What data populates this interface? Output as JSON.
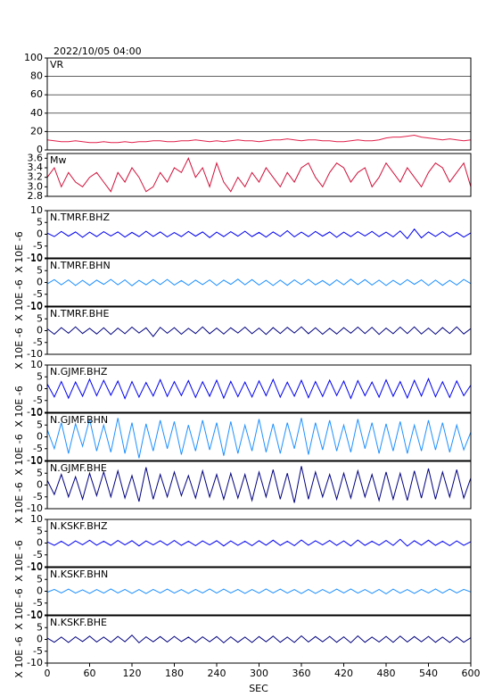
{
  "chart_data": {
    "type": "line",
    "title": "2022/10/05 04:00",
    "x_label": "SEC",
    "xlim": [
      0,
      600
    ],
    "xticks": [
      0,
      60,
      120,
      180,
      240,
      300,
      360,
      420,
      480,
      540,
      600
    ],
    "x": [
      0,
      10,
      20,
      30,
      40,
      50,
      60,
      70,
      80,
      90,
      100,
      110,
      120,
      130,
      140,
      150,
      160,
      170,
      180,
      190,
      200,
      210,
      220,
      230,
      240,
      250,
      260,
      270,
      280,
      290,
      300,
      310,
      320,
      330,
      340,
      350,
      360,
      370,
      380,
      390,
      400,
      410,
      420,
      430,
      440,
      450,
      460,
      470,
      480,
      490,
      500,
      510,
      520,
      530,
      540,
      550,
      560,
      570,
      580,
      590,
      600
    ],
    "panels": [
      {
        "label": "VR",
        "color": "#e0204a",
        "ylim": [
          0,
          100
        ],
        "yticks": [
          0,
          20,
          40,
          60,
          80,
          100
        ],
        "grid": true,
        "values": [
          11,
          10,
          9,
          9,
          10,
          9,
          8,
          8,
          9,
          8,
          8,
          9,
          8,
          9,
          9,
          10,
          10,
          9,
          9,
          10,
          10,
          11,
          10,
          9,
          10,
          9,
          10,
          11,
          10,
          10,
          9,
          10,
          11,
          11,
          12,
          11,
          10,
          11,
          11,
          10,
          10,
          9,
          9,
          10,
          11,
          10,
          10,
          11,
          13,
          14,
          14,
          15,
          16,
          14,
          13,
          12,
          11,
          12,
          11,
          10,
          11
        ]
      },
      {
        "label": "Mw",
        "color": "#d0103a",
        "ylim": [
          2.8,
          3.7
        ],
        "yticks": [
          2.8,
          {
            "value": 3,
            "label": "3.0"
          },
          3.2,
          3.4,
          3.6
        ],
        "grid": false,
        "values": [
          3.2,
          3.4,
          3.0,
          3.3,
          3.1,
          3.0,
          3.2,
          3.3,
          3.1,
          2.9,
          3.3,
          3.1,
          3.4,
          3.2,
          2.9,
          3.0,
          3.3,
          3.1,
          3.4,
          3.3,
          3.6,
          3.2,
          3.4,
          3.0,
          3.5,
          3.1,
          2.9,
          3.2,
          3.0,
          3.3,
          3.1,
          3.4,
          3.2,
          3.0,
          3.3,
          3.1,
          3.4,
          3.5,
          3.2,
          3.0,
          3.3,
          3.5,
          3.4,
          3.1,
          3.3,
          3.4,
          3.0,
          3.2,
          3.5,
          3.3,
          3.1,
          3.4,
          3.2,
          3.0,
          3.3,
          3.5,
          3.4,
          3.1,
          3.3,
          3.5,
          3.0
        ]
      },
      {
        "label": "N.TMRF.BHZ",
        "unit_label": "X 10E -6",
        "color": "#0000ee",
        "ylim": [
          -10,
          10
        ],
        "yticks": [
          -10,
          -5,
          0,
          5,
          10
        ],
        "grid": false,
        "values": [
          0.5,
          -1,
          1.2,
          -0.8,
          1,
          -1.3,
          0.9,
          -1,
          1.1,
          -0.7,
          1,
          -1.2,
          0.8,
          -1,
          1.3,
          -0.9,
          1,
          -1.1,
          0.7,
          -1,
          1.2,
          -0.8,
          1,
          -1.4,
          0.9,
          -1,
          1.1,
          -0.8,
          1.3,
          -1,
          0.8,
          -1.2,
          1,
          -0.9,
          1.5,
          -1.1,
          0.9,
          -1,
          1.2,
          -0.8,
          1,
          -1.3,
          0.9,
          -1,
          1.1,
          -0.7,
          1.2,
          -1,
          0.9,
          -1.1,
          1.4,
          -1.8,
          2.2,
          -1.5,
          1,
          -0.9,
          1.1,
          -1,
          0.8,
          -1.2,
          0.6
        ]
      },
      {
        "label": "N.TMRF.BHN",
        "unit_label": "X 10E -6",
        "color": "#1e90ff",
        "ylim": [
          -10,
          10
        ],
        "yticks": [
          -10,
          -5,
          0,
          5,
          10
        ],
        "grid": false,
        "values": [
          -0.6,
          1.2,
          -1,
          1.1,
          -1.3,
          0.9,
          -1.2,
          1,
          -0.8,
          1.3,
          -1,
          1.1,
          -1.4,
          0.9,
          -1,
          1.2,
          -0.9,
          1.3,
          -1.1,
          0.8,
          -1.2,
          1,
          -0.9,
          1.1,
          -1.3,
          1,
          -0.8,
          1.4,
          -1,
          1.2,
          -1.1,
          0.9,
          -1.3,
          1,
          -1.2,
          1.1,
          -0.9,
          1.3,
          -1,
          0.8,
          -1.2,
          1.1,
          -1,
          1.4,
          -0.9,
          1.2,
          -1.1,
          1,
          -1.3,
          0.9,
          -1,
          1.2,
          -0.8,
          1.1,
          -1.3,
          1,
          -1.2,
          0.9,
          -1.1,
          1.3,
          -0.5
        ]
      },
      {
        "label": "N.TMRF.BHE",
        "unit_label": "X 10E -6",
        "color": "#00007f",
        "ylim": [
          -10,
          10
        ],
        "yticks": [
          -10,
          -5,
          0,
          5,
          10
        ],
        "grid": false,
        "values": [
          0.8,
          -1.5,
          1.3,
          -1.1,
          1.6,
          -1.2,
          1,
          -1.4,
          1.2,
          -1.6,
          1.1,
          -1.3,
          1.5,
          -1,
          1.2,
          -2.5,
          1.4,
          -1.1,
          1.3,
          -1.5,
          1,
          -1.2,
          1.6,
          -1.3,
          1.1,
          -1.4,
          1.2,
          -1,
          1.5,
          -1.3,
          1.1,
          -1.6,
          1.3,
          -1.2,
          1.4,
          -1,
          1.6,
          -1.3,
          1.2,
          -1.5,
          1,
          -1.4,
          1.3,
          -1.1,
          1.5,
          -1.2,
          1.4,
          -1.6,
          1.1,
          -1.3,
          1.5,
          -1.2,
          1.6,
          -1.4,
          1.1,
          -1.5,
          1.3,
          -1.2,
          1.6,
          -1.4,
          0.9
        ]
      },
      {
        "label": "N.GJMF.BHZ",
        "unit_label": "X 10E -6",
        "color": "#0000ee",
        "ylim": [
          -10,
          10
        ],
        "yticks": [
          -10,
          -5,
          0,
          5,
          10
        ],
        "grid": false,
        "values": [
          2,
          -3.5,
          3,
          -4,
          2.8,
          -3.2,
          4,
          -3,
          3.5,
          -2.8,
          3.2,
          -4.2,
          3,
          -3.6,
          2.6,
          -3.1,
          3.8,
          -3.3,
          3,
          -2.9,
          3.4,
          -3.7,
          2.9,
          -3.2,
          3.6,
          -4,
          3.1,
          -3.4,
          2.8,
          -3.5,
          3.3,
          -3,
          3.9,
          -3.6,
          2.7,
          -3.2,
          3.5,
          -3.8,
          3,
          -3.3,
          3.6,
          -2.9,
          3.2,
          -4.1,
          3.4,
          -3,
          2.8,
          -3.6,
          3.7,
          -3.2,
          3,
          -3.9,
          3.5,
          -3.1,
          4.2,
          -3.4,
          2.9,
          -3.7,
          3.3,
          -3,
          1.5
        ]
      },
      {
        "label": "N.GJMF.BHN",
        "unit_label": "X 10E -6",
        "color": "#1e90ff",
        "ylim": [
          -10,
          10
        ],
        "yticks": [
          -10,
          -5,
          0,
          5,
          10
        ],
        "grid": false,
        "values": [
          3,
          -5,
          6,
          -7,
          5.5,
          -4,
          7.5,
          -6,
          5,
          -6.5,
          8,
          -7,
          6,
          -9,
          5.5,
          -6,
          7,
          -5,
          6.5,
          -7.5,
          5,
          -6,
          7,
          -5.5,
          6,
          -8,
          6.5,
          -7,
          5,
          -6,
          7.5,
          -6.5,
          5.5,
          -7,
          6,
          -5,
          8,
          -7.5,
          6,
          -5.5,
          7,
          -6,
          5,
          -6.5,
          7.5,
          -5,
          6,
          -7,
          5.5,
          -6,
          6.5,
          -7,
          5,
          -6,
          7,
          -5.5,
          6,
          -6.5,
          5,
          -5.5,
          2
        ]
      },
      {
        "label": "N.GJMF.BHE",
        "unit_label": "X 10E -6",
        "color": "#00007f",
        "ylim": [
          -10,
          10
        ],
        "yticks": [
          -10,
          -5,
          0,
          5,
          10
        ],
        "grid": false,
        "values": [
          2,
          -4,
          4.5,
          -5,
          3.5,
          -6,
          5,
          -4.5,
          5.5,
          -5,
          6,
          -5.5,
          4,
          -7,
          7.5,
          -6,
          4.5,
          -5,
          5.5,
          -4.5,
          4,
          -5.5,
          6,
          -5,
          4.5,
          -6,
          5,
          -5.5,
          4.5,
          -6.5,
          5.5,
          -5,
          6.5,
          -6,
          5,
          -7.5,
          8,
          -6,
          5.5,
          -5,
          4.5,
          -6,
          5,
          -5.5,
          6,
          -5,
          4.5,
          -6.5,
          5.5,
          -6,
          5,
          -6.5,
          6,
          -5.5,
          7,
          -6,
          5.5,
          -5,
          6.5,
          -5.5,
          3
        ]
      },
      {
        "label": "N.KSKF.BHZ",
        "unit_label": "X 10E -6",
        "color": "#0000ee",
        "ylim": [
          -10,
          10
        ],
        "yticks": [
          -10,
          -5,
          0,
          5,
          10
        ],
        "grid": false,
        "values": [
          0.5,
          -1,
          0.8,
          -1.1,
          0.9,
          -0.7,
          1.2,
          -0.9,
          0.8,
          -1,
          1.1,
          -0.8,
          1,
          -1.2,
          0.9,
          -0.8,
          1,
          -0.9,
          1.1,
          -1,
          0.8,
          -1.1,
          0.9,
          -0.8,
          1,
          -1.2,
          0.9,
          -1,
          0.8,
          -1.1,
          1,
          -0.9,
          1.2,
          -1,
          0.8,
          -1.1,
          1.3,
          -0.9,
          1,
          -0.8,
          1.1,
          -1,
          0.9,
          -1.2,
          1.3,
          -1,
          0.8,
          -0.9,
          1.1,
          -1,
          1.6,
          -1.3,
          1,
          -0.9,
          1.2,
          -1,
          0.8,
          -1.1,
          0.9,
          -1,
          0.6
        ]
      },
      {
        "label": "N.KSKF.BHN",
        "unit_label": "X 10E -6",
        "color": "#1e90ff",
        "ylim": [
          -10,
          10
        ],
        "yticks": [
          -10,
          -5,
          0,
          5,
          10
        ],
        "grid": false,
        "values": [
          -0.4,
          0.8,
          -0.7,
          0.9,
          -0.8,
          0.6,
          -0.9,
          0.7,
          -0.8,
          1,
          -0.7,
          0.8,
          -0.9,
          0.7,
          -1,
          0.8,
          -0.7,
          0.9,
          -0.8,
          0.7,
          -0.9,
          0.8,
          -0.7,
          1,
          -0.8,
          0.9,
          -0.7,
          0.8,
          -0.9,
          0.7,
          -0.8,
          1,
          -0.7,
          0.9,
          -0.8,
          0.7,
          -1,
          0.8,
          -0.9,
          0.7,
          -0.8,
          0.9,
          -0.7,
          1,
          -0.8,
          0.7,
          -0.9,
          0.8,
          -1.1,
          0.9,
          -0.8,
          0.7,
          -0.9,
          0.8,
          -0.7,
          1,
          -0.8,
          0.9,
          -0.7,
          0.8,
          -0.3
        ]
      },
      {
        "label": "N.KSKF.BHE",
        "unit_label": "X 10E -6",
        "color": "#00007f",
        "ylim": [
          -10,
          10
        ],
        "yticks": [
          -10,
          -5,
          0,
          5,
          10
        ],
        "grid": false,
        "values": [
          0.6,
          -1.2,
          1,
          -1.3,
          1.1,
          -0.9,
          1.4,
          -1.1,
          1,
          -1.2,
          1.3,
          -1,
          1.8,
          -1.4,
          1.1,
          -1,
          1.2,
          -1.1,
          1.3,
          -0.9,
          1,
          -1.3,
          1.1,
          -1,
          1.2,
          -1.4,
          1.1,
          -1.2,
          1,
          -1.3,
          1.2,
          -1,
          1.4,
          -1.2,
          1,
          -1.3,
          1.5,
          -1.1,
          1.2,
          -1,
          1.3,
          -1.2,
          1.1,
          -1.4,
          1.5,
          -1.2,
          1,
          -1.1,
          1.3,
          -1.2,
          1.4,
          -1.1,
          1.2,
          -1,
          1.3,
          -1.2,
          1,
          -1.3,
          1.1,
          -1.2,
          0.7
        ]
      }
    ]
  }
}
